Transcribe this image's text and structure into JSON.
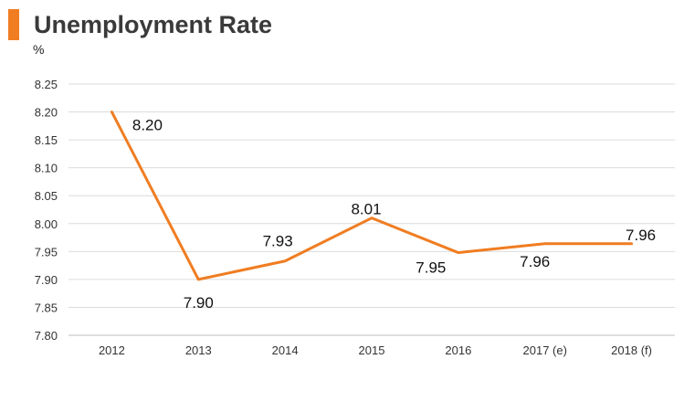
{
  "header": {
    "title": "Unemployment Rate",
    "unit": "%",
    "accent_color": "#f07d22"
  },
  "chart_data": {
    "type": "line",
    "title": "Unemployment Rate",
    "xlabel": "",
    "ylabel": "%",
    "categories": [
      "2012",
      "2013",
      "2014",
      "2015",
      "2016",
      "2017 (e)",
      "2018 (f)"
    ],
    "series": [
      {
        "values": [
          8.2,
          7.9,
          7.933,
          8.01,
          7.948,
          7.964,
          7.964
        ],
        "color": "#f07d22"
      }
    ],
    "data_labels": [
      "8.20",
      "7.90",
      "7.93",
      "8.01",
      "7.95",
      "7.96",
      "7.96"
    ],
    "ylim": [
      7.8,
      8.25
    ],
    "yticks": [
      "7.80",
      "7.85",
      "7.90",
      "7.95",
      "8.00",
      "8.05",
      "8.10",
      "8.15",
      "8.20",
      "8.25"
    ],
    "grid": true,
    "legend": "none"
  }
}
